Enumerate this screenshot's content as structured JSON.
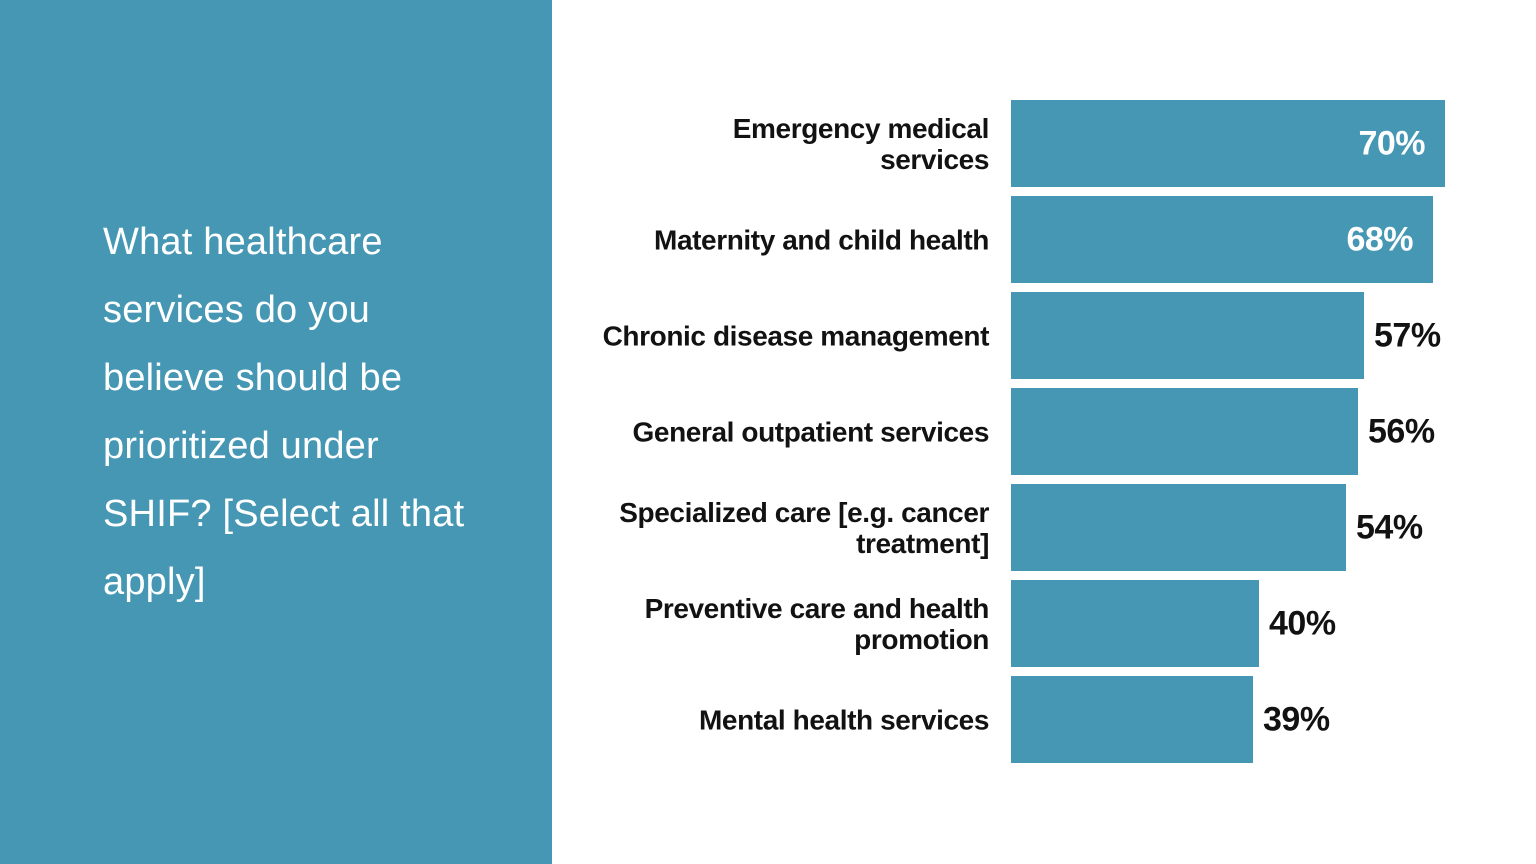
{
  "page": {
    "background": "#ffffff"
  },
  "sidebar": {
    "background_color": "#4597B4",
    "text_color": "#ffffff",
    "question": "What healthcare services do you believe should be prioritized under SHIF? [Select all that apply]",
    "question_lines": [
      "What healthcare",
      "services do you",
      "believe should be",
      "prioritized under",
      "SHIF? [Select all that",
      "apply]"
    ]
  },
  "chart_data": {
    "type": "bar",
    "orientation": "horizontal",
    "title": "",
    "xlabel": "",
    "ylabel": "",
    "xlim": [
      0,
      100
    ],
    "grid": false,
    "axes_visible": false,
    "legend": null,
    "bar_color": "#4597B4",
    "category_text_color": "#121212",
    "value_text_color_inside": "#ffffff",
    "value_text_color_outside": "#121212",
    "categories": [
      "Emergency medical services",
      "Maternity and child health",
      "Chronic disease management",
      "General outpatient services",
      "Specialized care [e.g. cancer treatment]",
      "Preventive care and health promotion",
      "Mental health services"
    ],
    "category_lines": [
      [
        "Emergency medical",
        "services"
      ],
      [
        "Maternity and child health"
      ],
      [
        "Chronic disease management"
      ],
      [
        "General outpatient services"
      ],
      [
        "Specialized care [e.g. cancer",
        "treatment]"
      ],
      [
        "Preventive care and health",
        "promotion"
      ],
      [
        "Mental health services"
      ]
    ],
    "values": [
      70,
      68,
      57,
      56,
      54,
      40,
      39
    ],
    "value_labels": [
      "70%",
      "68%",
      "57%",
      "56%",
      "54%",
      "40%",
      "39%"
    ],
    "value_label_inside_bar": [
      true,
      true,
      false,
      false,
      false,
      false,
      false
    ]
  }
}
